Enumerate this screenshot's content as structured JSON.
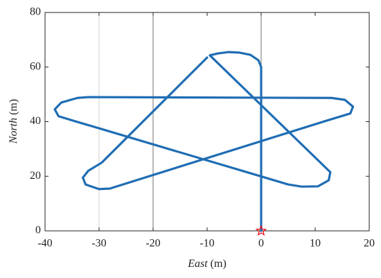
{
  "chart_data": {
    "type": "line",
    "xlabel": "East (m)",
    "ylabel": "North (m)",
    "xlim": [
      -40,
      20
    ],
    "xticks": [
      -40,
      -30,
      -20,
      -10,
      0,
      10,
      20
    ],
    "ylim": [
      0,
      80
    ],
    "yticks": [
      0,
      20,
      40,
      60,
      80
    ],
    "xgrid": [
      {
        "value": -30,
        "color": "#d0d0d0"
      },
      {
        "value": -20,
        "color": "#707070"
      },
      {
        "value": 0,
        "color": "#707070"
      }
    ],
    "series": [
      {
        "color": "#1f6db4",
        "x": [
          0,
          0,
          -0.5,
          -2,
          -4,
          -6,
          -8,
          -9.5,
          11.5,
          12.8,
          12.5,
          10.5,
          7.5,
          5,
          -35,
          -37.5,
          -38.2,
          -37,
          -34,
          -32,
          13,
          15.5,
          17,
          16.5,
          14,
          12,
          -28,
          -30,
          -32.5,
          -33,
          -32,
          -29.5,
          -10
        ],
        "values": [
          0,
          60,
          62.5,
          64.5,
          65.3,
          65.5,
          65,
          64.3,
          24,
          21.5,
          18.5,
          16.3,
          16.2,
          17,
          40.5,
          42,
          44.5,
          47,
          48.7,
          49,
          48.7,
          48,
          45.5,
          43,
          41.5,
          40.3,
          15.5,
          15.3,
          17,
          19.5,
          22,
          25,
          63.5
        ]
      }
    ],
    "start": {
      "x": 0,
      "y": 0,
      "color": "#e8131b",
      "marker": "star"
    }
  }
}
